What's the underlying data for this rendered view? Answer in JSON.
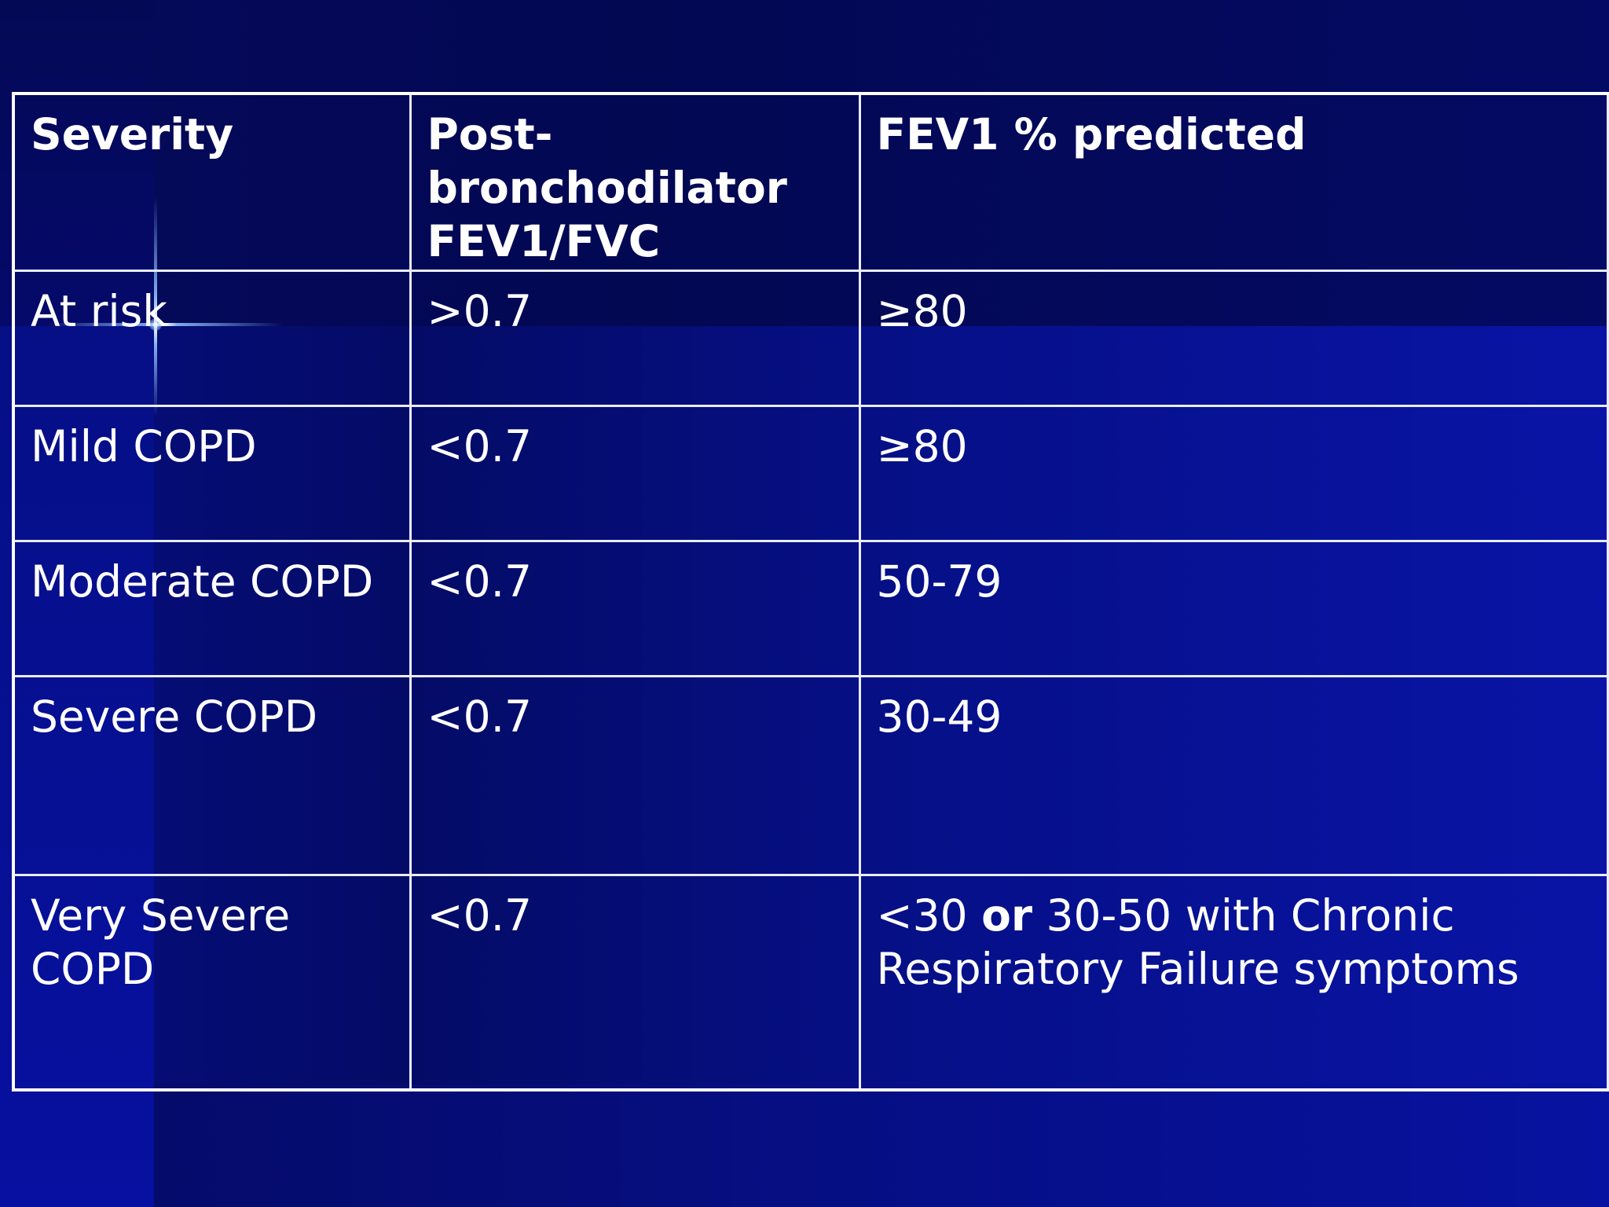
{
  "slide": {
    "table": {
      "headers": [
        "Severity",
        "Post-bronchodilator FEV1/FVC",
        "FEV1 % predicted"
      ],
      "header_lines": {
        "col2": [
          "Post-",
          "bronchodilator",
          "FEV1/FVC"
        ]
      },
      "rows": [
        {
          "severity": "At risk",
          "ratio": ">0.7",
          "fev1": "≥80"
        },
        {
          "severity": "Mild COPD",
          "ratio": "<0.7",
          "fev1": "≥80"
        },
        {
          "severity": "Moderate COPD",
          "ratio": "<0.7",
          "fev1": "50-79"
        },
        {
          "severity": "Severe COPD",
          "ratio": "<0.7",
          "fev1": "30-49"
        },
        {
          "severity": "Very Severe COPD",
          "ratio": "<0.7",
          "fev1_parts": {
            "a": "<30 ",
            "or": "or",
            "b": " 30-50 with Chronic Respiratory Failure symptoms"
          }
        }
      ]
    }
  }
}
